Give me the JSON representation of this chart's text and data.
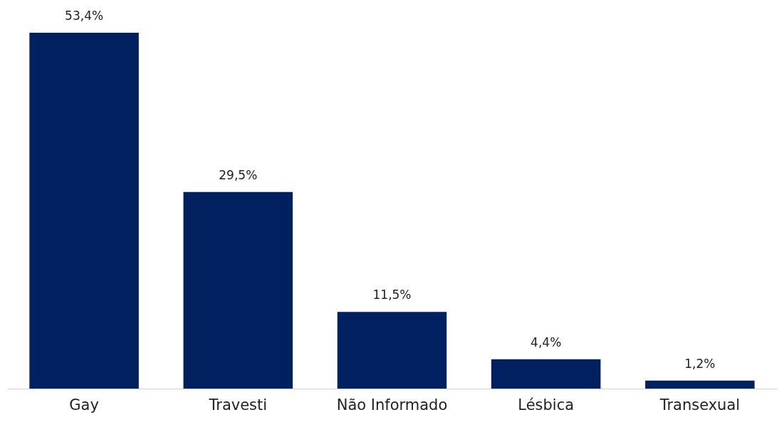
{
  "chart_data": {
    "type": "bar",
    "categories": [
      "Gay",
      "Travesti",
      "Não Informado",
      "Lésbica",
      "Transexual"
    ],
    "values": [
      53.4,
      29.5,
      11.5,
      4.4,
      1.2
    ],
    "value_labels": [
      "53,4%",
      "29,5%",
      "11,5%",
      "4,4%",
      "1,2%"
    ],
    "color": "#002060",
    "grid": false
  }
}
